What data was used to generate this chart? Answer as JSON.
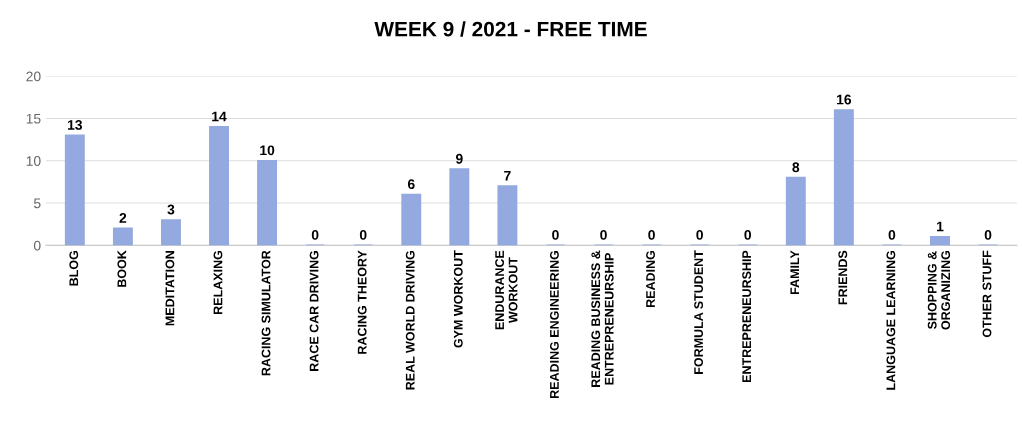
{
  "chart_data": {
    "type": "bar",
    "title": "WEEK 9 / 2021 - FREE TIME",
    "categories": [
      "BLOG",
      "BOOK",
      "MEDITATION",
      "RELAXING",
      "RACING SIMULATOR",
      "RACE CAR DRIVING",
      "RACING THEORY",
      "REAL WORLD DRIVING",
      "GYM WORKOUT",
      "ENDURANCE\nWORKOUT",
      "READING ENGINEERING",
      "READING BUSINESS &\nENTREPRENEURSHIP",
      "READING",
      "FORMULA STUDENT",
      "ENTREPRENEURSHIP",
      "FAMILY",
      "FRIENDS",
      "LANGUAGE LEARNING",
      "SHOPPING &\nORGANIZING",
      "OTHER STUFF"
    ],
    "values": [
      13,
      2,
      3,
      14,
      10,
      0,
      0,
      6,
      9,
      7,
      0,
      0,
      0,
      0,
      0,
      8,
      16,
      0,
      1,
      0
    ],
    "color": "#93a9df",
    "ylim": [
      0,
      20
    ],
    "yticks": [
      0,
      5,
      10,
      15,
      20
    ],
    "grid": "y",
    "data_labels": true
  }
}
